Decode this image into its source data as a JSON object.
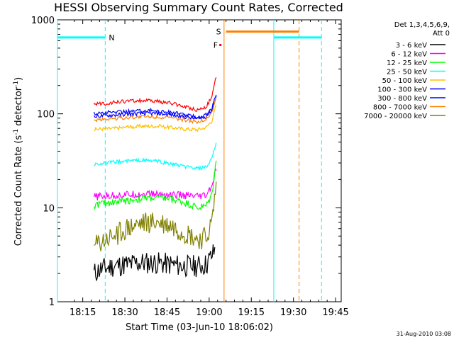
{
  "chart_data": {
    "type": "line",
    "title": "HESSI Observing Summary Count Rates, Corrected",
    "xlabel": "Start Time (03-Jun-10 18:06:02)",
    "ylabel": "Corrected Count Rate (s⁻¹ detector⁻¹)",
    "xscale": "time (minutes after 18:06:02)",
    "yscale": "log",
    "xlim": [
      0,
      101
    ],
    "ylim": [
      1,
      1000
    ],
    "x_ticks": [
      {
        "m": 9,
        "label": "18:15"
      },
      {
        "m": 24,
        "label": "18:30"
      },
      {
        "m": 39,
        "label": "18:45"
      },
      {
        "m": 54,
        "label": "19:00"
      },
      {
        "m": 69,
        "label": "19:15"
      },
      {
        "m": 84,
        "label": "19:30"
      },
      {
        "m": 99,
        "label": "19:45"
      }
    ],
    "y_ticks": [
      {
        "v": 1,
        "label": "1"
      },
      {
        "v": 10,
        "label": "10"
      },
      {
        "v": 100,
        "label": "100"
      },
      {
        "v": 1000,
        "label": "1000"
      }
    ],
    "legend_header": [
      "Det 1,3,4,5,6,9,",
      "Att 0"
    ],
    "legend_position": "right",
    "series": [
      {
        "name": "3 - 6 keV",
        "color": "#000000",
        "x": [
          13,
          15,
          20,
          25,
          30,
          35,
          40,
          45,
          50,
          53,
          56
        ],
        "y": [
          2.0,
          2.2,
          2.4,
          2.5,
          2.6,
          2.6,
          2.5,
          2.4,
          2.4,
          2.5,
          3.5
        ]
      },
      {
        "name": "6 - 12 keV",
        "color": "#ff00ff",
        "x": [
          13,
          15,
          20,
          25,
          30,
          35,
          40,
          45,
          50,
          53,
          55,
          56.5
        ],
        "y": [
          13,
          13.2,
          13.5,
          13.8,
          14,
          14,
          13.8,
          13.5,
          13,
          13.5,
          17,
          26
        ]
      },
      {
        "name": "12 - 25 keV",
        "color": "#00ff00",
        "x": [
          13,
          15,
          20,
          25,
          30,
          35,
          40,
          45,
          50,
          53,
          55,
          56.5
        ],
        "y": [
          10.5,
          11,
          11.5,
          12,
          12.5,
          12.8,
          12.5,
          11.5,
          10,
          10.5,
          14,
          33
        ]
      },
      {
        "name": "25 - 50 keV",
        "color": "#00ffff",
        "x": [
          13,
          15,
          20,
          25,
          30,
          35,
          40,
          45,
          50,
          53,
          55,
          56.5
        ],
        "y": [
          29,
          29.5,
          30.5,
          31.5,
          32,
          31.5,
          29.5,
          27.5,
          26,
          27,
          33,
          50
        ]
      },
      {
        "name": "50 - 100 keV",
        "color": "#ffc000",
        "x": [
          13,
          15,
          20,
          25,
          30,
          35,
          40,
          45,
          50,
          53,
          55,
          56.5
        ],
        "y": [
          68,
          69,
          70,
          72,
          74,
          74,
          72,
          69,
          68,
          72,
          85,
          125
        ]
      },
      {
        "name": "100 - 300 keV",
        "color": "#0000ff",
        "x": [
          13,
          15,
          20,
          25,
          30,
          35,
          40,
          45,
          50,
          53,
          55,
          56.5
        ],
        "y": [
          100,
          102,
          104,
          106,
          108,
          108,
          104,
          98,
          92,
          98,
          115,
          160
        ]
      },
      {
        "name": "300 - 800 keV",
        "color": "#0000ff",
        "x": [
          13,
          15,
          20,
          25,
          30,
          35,
          40,
          45,
          50,
          53,
          55,
          56.5
        ],
        "y": [
          93,
          95,
          97,
          99,
          101,
          101,
          98,
          93,
          88,
          94,
          110,
          155
        ]
      },
      {
        "name": "800 - 7000 keV",
        "color": "#ff8000",
        "x": [
          13,
          15,
          20,
          25,
          30,
          35,
          40,
          45,
          50,
          53,
          55,
          56.5
        ],
        "y": [
          85,
          87,
          89,
          91,
          93,
          93,
          90,
          86,
          82,
          88,
          105,
          150
        ]
      },
      {
        "name": "7000 - 20000 keV",
        "color": "#808000",
        "x": [
          13,
          15,
          20,
          25,
          30,
          35,
          40,
          45,
          50,
          53,
          55,
          56.5
        ],
        "y": [
          3.8,
          4.2,
          5.0,
          6.0,
          6.8,
          7.0,
          6.5,
          5.5,
          4.6,
          4.8,
          7,
          18
        ]
      }
    ],
    "red_series": {
      "color": "#ff0000",
      "x": [
        13,
        15,
        20,
        25,
        30,
        35,
        40,
        45,
        50,
        53,
        55,
        56.5
      ],
      "y": [
        125,
        128,
        132,
        136,
        138,
        136,
        130,
        120,
        110,
        120,
        150,
        250
      ]
    },
    "annotations": [
      {
        "label": "N",
        "color": "#00ffff",
        "x_start": 0,
        "x_end": 17,
        "y": 650
      },
      {
        "label": "S",
        "color": "#ff8000",
        "x_start": 60,
        "x_end": 86,
        "y": 750
      },
      {
        "label": "F",
        "color": "#ff0000",
        "x": 58,
        "y": 540
      }
    ],
    "vertical_markers": [
      {
        "m": 0,
        "color": "#00ffff",
        "style": "solid"
      },
      {
        "m": 17,
        "color": "#00ffff",
        "style": "dashed"
      },
      {
        "m": 59.3,
        "color": "#ff8000",
        "style": "solid"
      },
      {
        "m": 77,
        "color": "#00ffff",
        "style": "solid"
      },
      {
        "m": 86,
        "color": "#ff8000",
        "style": "dashed"
      },
      {
        "m": 94,
        "color": "#00ffff",
        "style": "dashed"
      }
    ],
    "horizontal_bars": [
      {
        "color": "#00ffff",
        "x_start": 0,
        "x_end": 17,
        "y": 650
      },
      {
        "color": "#ff8000",
        "x_start": 60,
        "x_end": 86,
        "y": 750
      },
      {
        "color": "#00ffff",
        "x_start": 77,
        "x_end": 94,
        "y": 650
      }
    ]
  },
  "footer": {
    "date": "31-Aug-2010 03:08"
  }
}
